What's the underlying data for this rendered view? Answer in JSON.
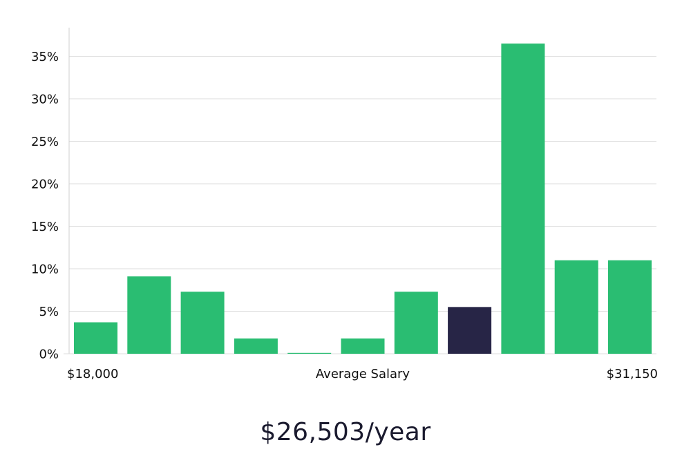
{
  "colors": {
    "bar": "#2abd72",
    "bar_highlight": "#272546",
    "grid": "#dedede",
    "axis": "#cfcfcf"
  },
  "headline": "$26,503/year",
  "chart_data": {
    "type": "bar",
    "title": "",
    "xlabel": "Average Salary",
    "ylabel": "",
    "x_range_labels": {
      "min": "$18,000",
      "max": "$31,150"
    },
    "ylim": [
      0,
      38
    ],
    "yticks": [
      0,
      5,
      10,
      15,
      20,
      25,
      30,
      35
    ],
    "ytick_labels": [
      "0%",
      "5%",
      "10%",
      "15%",
      "20%",
      "25%",
      "30%",
      "35%"
    ],
    "values": [
      3.7,
      9.1,
      7.3,
      1.8,
      0.1,
      1.8,
      7.3,
      5.5,
      36.5,
      11.0,
      11.0
    ],
    "highlight_index": 7,
    "grid": true
  }
}
